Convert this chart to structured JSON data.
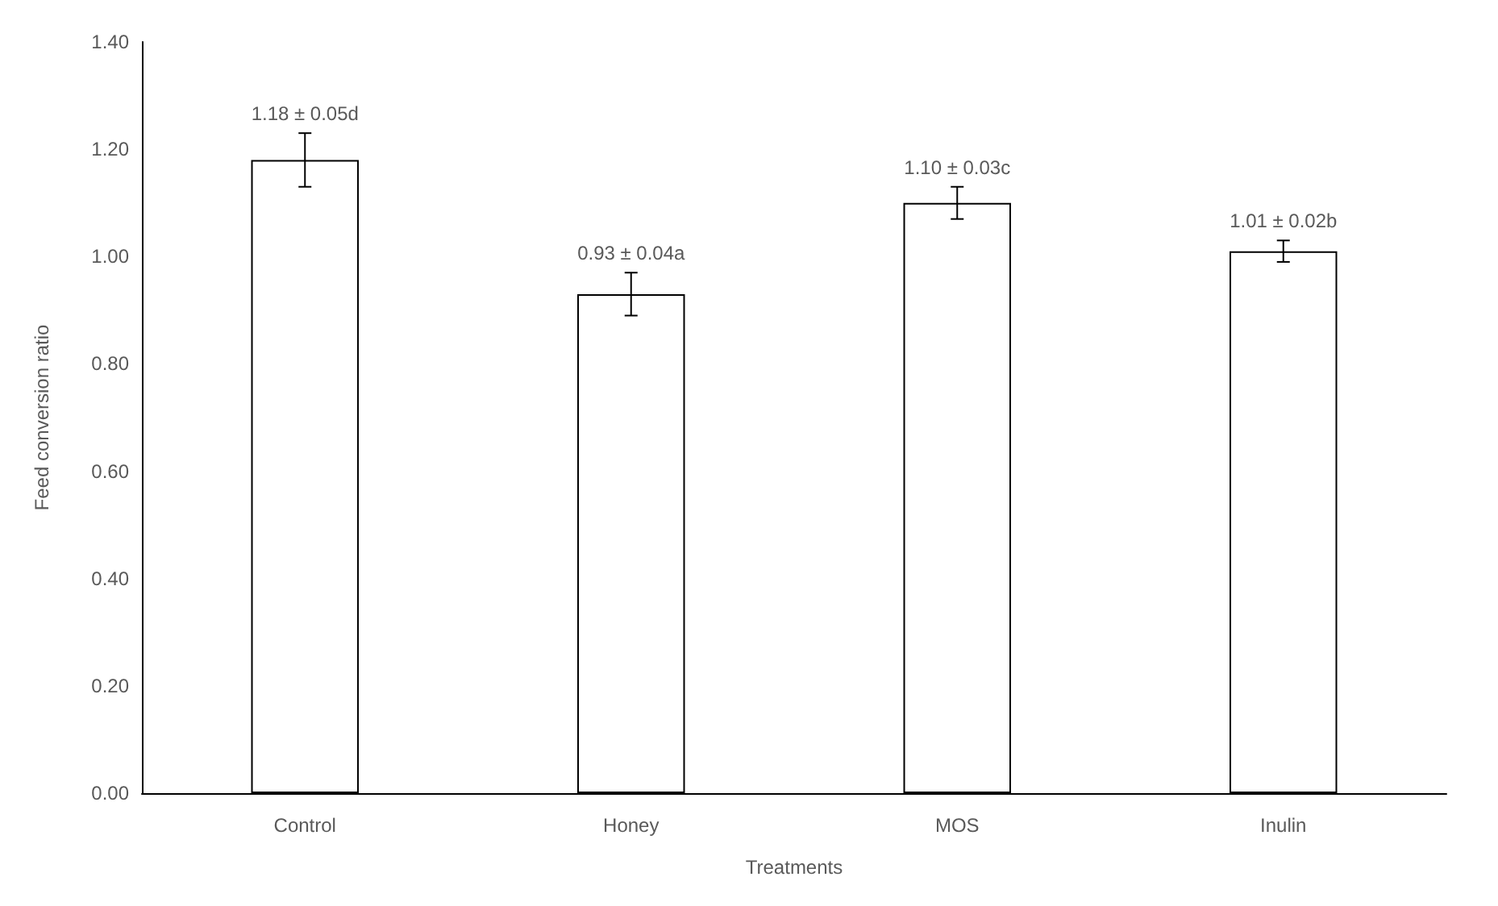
{
  "chart_data": {
    "type": "bar",
    "xlabel": "Treatments",
    "ylabel": "Feed conversion ratio",
    "categories": [
      "Control",
      "Honey",
      "MOS",
      "Inulin"
    ],
    "values": [
      1.18,
      0.93,
      1.1,
      1.01
    ],
    "errors": [
      0.05,
      0.04,
      0.03,
      0.02
    ],
    "value_labels": [
      "1.18 ± 0.05d",
      "0.93 ± 0.04a",
      "1.10 ± 0.03c",
      "1.01 ± 0.02b"
    ],
    "color": "#ffffff",
    "ylim": [
      0,
      1.4
    ],
    "yticks": [
      {
        "value": 0,
        "label": "0.00"
      },
      {
        "value": 0.2,
        "label": "0.20"
      },
      {
        "value": 0.4,
        "label": "0.40"
      },
      {
        "value": 0.6,
        "label": "0.60"
      },
      {
        "value": 0.8,
        "label": "0.80"
      },
      {
        "value": 1,
        "label": "1.00"
      },
      {
        "value": 1.2,
        "label": "1.20"
      },
      {
        "value": 1.4,
        "label": "1.40"
      }
    ],
    "grid": false
  }
}
